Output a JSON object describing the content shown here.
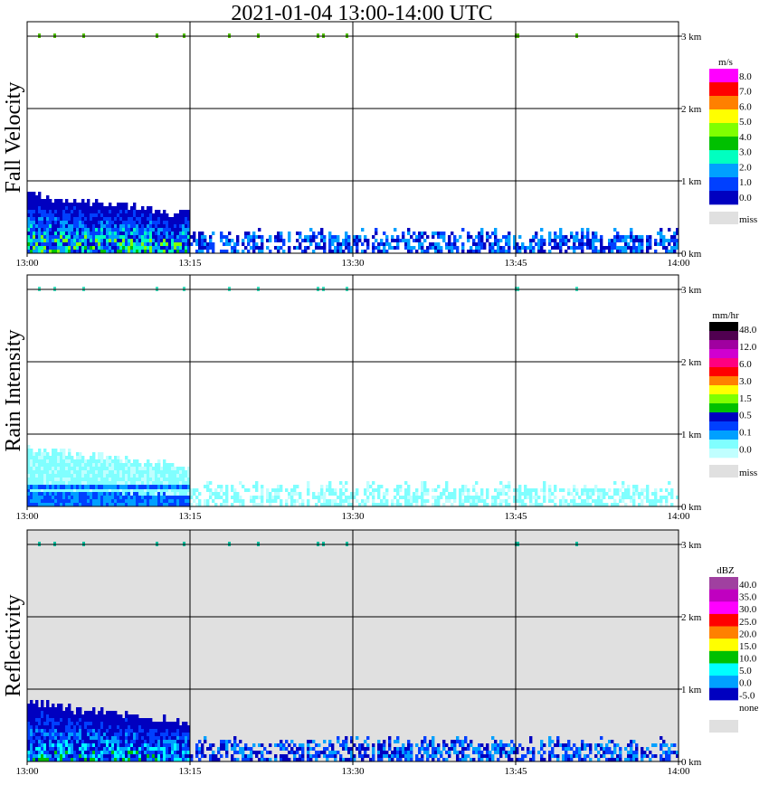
{
  "title": "2021-01-04   13:00-14:00 UTC",
  "chart_data": [
    {
      "type": "heatmap",
      "ylabel": "Fall Velocity",
      "x_ticks": [
        "13:00",
        "13:15",
        "13:30",
        "13:45",
        "14:00"
      ],
      "y_ticks": [
        "0 km",
        "1 km",
        "2 km",
        "3 km"
      ],
      "xlim": [
        "13:00",
        "14:00"
      ],
      "ylim_km": [
        0,
        3.2
      ],
      "background": "#ffffff",
      "colorbar": {
        "unit": "m/s",
        "labels": [
          "8.0",
          "7.0",
          "6.0",
          "5.0",
          "4.0",
          "3.0",
          "2.0",
          "1.0",
          "0.0"
        ],
        "colors": [
          "#ff00ff",
          "#ff0000",
          "#ff8000",
          "#ffff00",
          "#80ff00",
          "#00c000",
          "#00ffc0",
          "#00a0ff",
          "#0040ff",
          "#0000c0"
        ],
        "miss_label": "miss",
        "miss_color": "#e0e0e0"
      },
      "echo_layer": {
        "top_km": 0.7,
        "top_km_after_1315": 0.35,
        "dominant_colors": [
          "#0000c0",
          "#0040ff",
          "#00a0ff",
          "#00ffc0",
          "#80ff00",
          "#00c000",
          "#ff00ff"
        ]
      },
      "cloud_3km_color": "#50c000"
    },
    {
      "type": "heatmap",
      "ylabel": "Rain Intensity",
      "x_ticks": [
        "13:00",
        "13:15",
        "13:30",
        "13:45",
        "14:00"
      ],
      "y_ticks": [
        "0 km",
        "1 km",
        "2 km",
        "3 km"
      ],
      "xlim": [
        "13:00",
        "14:00"
      ],
      "ylim_km": [
        0,
        3.2
      ],
      "background": "#ffffff",
      "colorbar": {
        "unit": "mm/hr",
        "labels": [
          "48.0",
          "12.0",
          "6.0",
          "3.0",
          "1.5",
          "0.5",
          "0.1",
          "0.0"
        ],
        "colors": [
          "#000000",
          "#500050",
          "#a000a0",
          "#d000d0",
          "#ff0080",
          "#ff0000",
          "#ff8000",
          "#ffff00",
          "#80ff00",
          "#00c000",
          "#0000c0",
          "#0040ff",
          "#00a0ff",
          "#80ffff",
          "#c0ffff"
        ],
        "miss_label": "miss",
        "miss_color": "#e0e0e0"
      },
      "echo_layer": {
        "top_km": 0.7,
        "top_km_after_1315": 0.35,
        "dominant_colors": [
          "#80ffff",
          "#c0ffff",
          "#00a0ff",
          "#0040ff"
        ]
      },
      "cloud_3km_color": "#40e0c0"
    },
    {
      "type": "heatmap",
      "ylabel": "Reflectivity",
      "x_ticks": [
        "13:00",
        "13:15",
        "13:30",
        "13:45",
        "14:00"
      ],
      "y_ticks": [
        "0 km",
        "1 km",
        "2 km",
        "3 km"
      ],
      "xlim": [
        "13:00",
        "14:00"
      ],
      "ylim_km": [
        0,
        3.2
      ],
      "background": "#e0e0e0",
      "colorbar": {
        "unit": "dBZ",
        "labels": [
          "40.0",
          "35.0",
          "30.0",
          "25.0",
          "20.0",
          "15.0",
          "10.0",
          "5.0",
          "0.0",
          "-5.0",
          "none"
        ],
        "colors": [
          "#a040a0",
          "#c000c0",
          "#ff00ff",
          "#ff0000",
          "#ff8000",
          "#ffff00",
          "#00c000",
          "#00ffff",
          "#00a0ff",
          "#0000c0",
          "#ffffff"
        ],
        "miss_label": "",
        "miss_color": "#e0e0e0"
      },
      "echo_layer": {
        "top_km": 0.7,
        "top_km_after_1315": 0.35,
        "dominant_colors": [
          "#0000c0",
          "#0040ff",
          "#00a0ff",
          "#00ffff",
          "#00c000",
          "#ffffff"
        ]
      },
      "cloud_3km_color": "#00c0a0"
    }
  ]
}
